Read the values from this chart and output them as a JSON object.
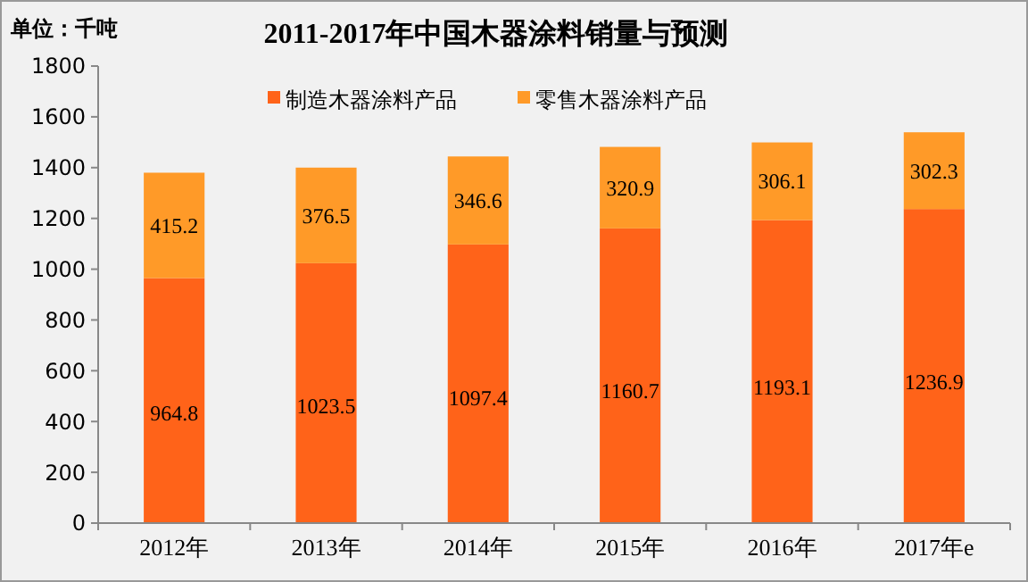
{
  "chart_data": {
    "type": "bar",
    "title": "2011-2017年中国木器涂料销量与预测",
    "ylabel": "单位：千吨",
    "categories": [
      "2012年",
      "2013年",
      "2014年",
      "2015年",
      "2016年",
      "2017年e"
    ],
    "series": [
      {
        "name": "制造木器涂料产品",
        "color": "#ff6319",
        "values": [
          964.8,
          1023.5,
          1097.4,
          1160.7,
          1193.1,
          1236.9
        ]
      },
      {
        "name": "零售木器涂料产品",
        "color": "#ff9a28",
        "values": [
          415.2,
          376.5,
          346.6,
          320.9,
          306.1,
          302.3
        ]
      }
    ],
    "stacked": true,
    "data_labels": true,
    "legend": "top",
    "ylim": [
      0,
      1800
    ],
    "yticks": [
      0,
      200,
      400,
      600,
      800,
      1000,
      1200,
      1400,
      1600,
      1800
    ]
  }
}
